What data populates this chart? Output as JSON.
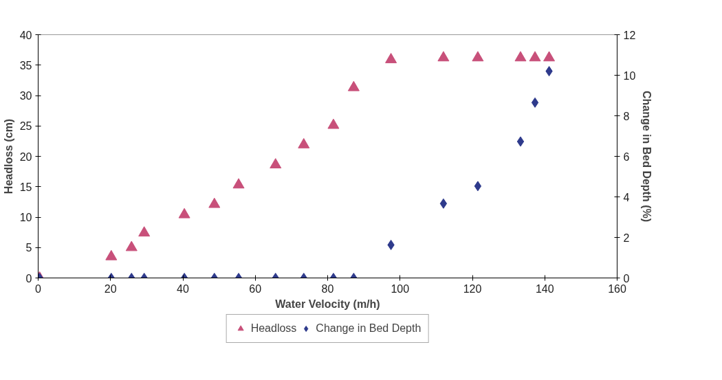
{
  "chart_data": {
    "type": "scatter",
    "xlabel": "Water Velocity (m/h)",
    "ylabel": "Headloss (cm)",
    "y2label": "Change in Bed Depth (%)",
    "xlim": [
      0,
      160
    ],
    "xticks": [
      0,
      20,
      40,
      60,
      80,
      100,
      120,
      140,
      160
    ],
    "ylim": [
      0,
      40
    ],
    "yticks": [
      0,
      5,
      10,
      15,
      20,
      25,
      30,
      35,
      40
    ],
    "y2lim": [
      0,
      12
    ],
    "y2ticks": [
      0,
      2,
      4,
      6,
      8,
      10,
      12
    ],
    "grid": false,
    "legend": "bottom",
    "series": [
      {
        "name": "Headloss",
        "color": "#c8507a",
        "marker": "triangle",
        "x": [
          0.4,
          20.2,
          25.8,
          29.3,
          40.4,
          48.7,
          55.4,
          65.6,
          73.4,
          81.6,
          87.2,
          97.5,
          112.0,
          121.5,
          133.3,
          137.3,
          141.2
        ],
        "values": [
          0,
          3.5,
          5.0,
          7.4,
          10.4,
          12.1,
          15.3,
          18.6,
          21.9,
          25.1,
          31.3,
          35.9,
          36.2,
          36.2,
          36.2,
          36.2,
          36.2
        ]
      },
      {
        "name": "Change in Bed Depth",
        "color": "#2e3a8c",
        "marker": "diamond",
        "axis": "y2",
        "x": [
          0.4,
          20.2,
          25.8,
          29.3,
          40.4,
          48.7,
          55.4,
          65.6,
          73.4,
          81.6,
          87.2,
          97.5,
          112.0,
          121.5,
          133.3,
          137.3,
          141.2
        ],
        "values": [
          0,
          0,
          0,
          0,
          0,
          0,
          0,
          0,
          0,
          0,
          0,
          1.63,
          3.67,
          4.53,
          6.73,
          8.65,
          10.2
        ]
      }
    ]
  }
}
